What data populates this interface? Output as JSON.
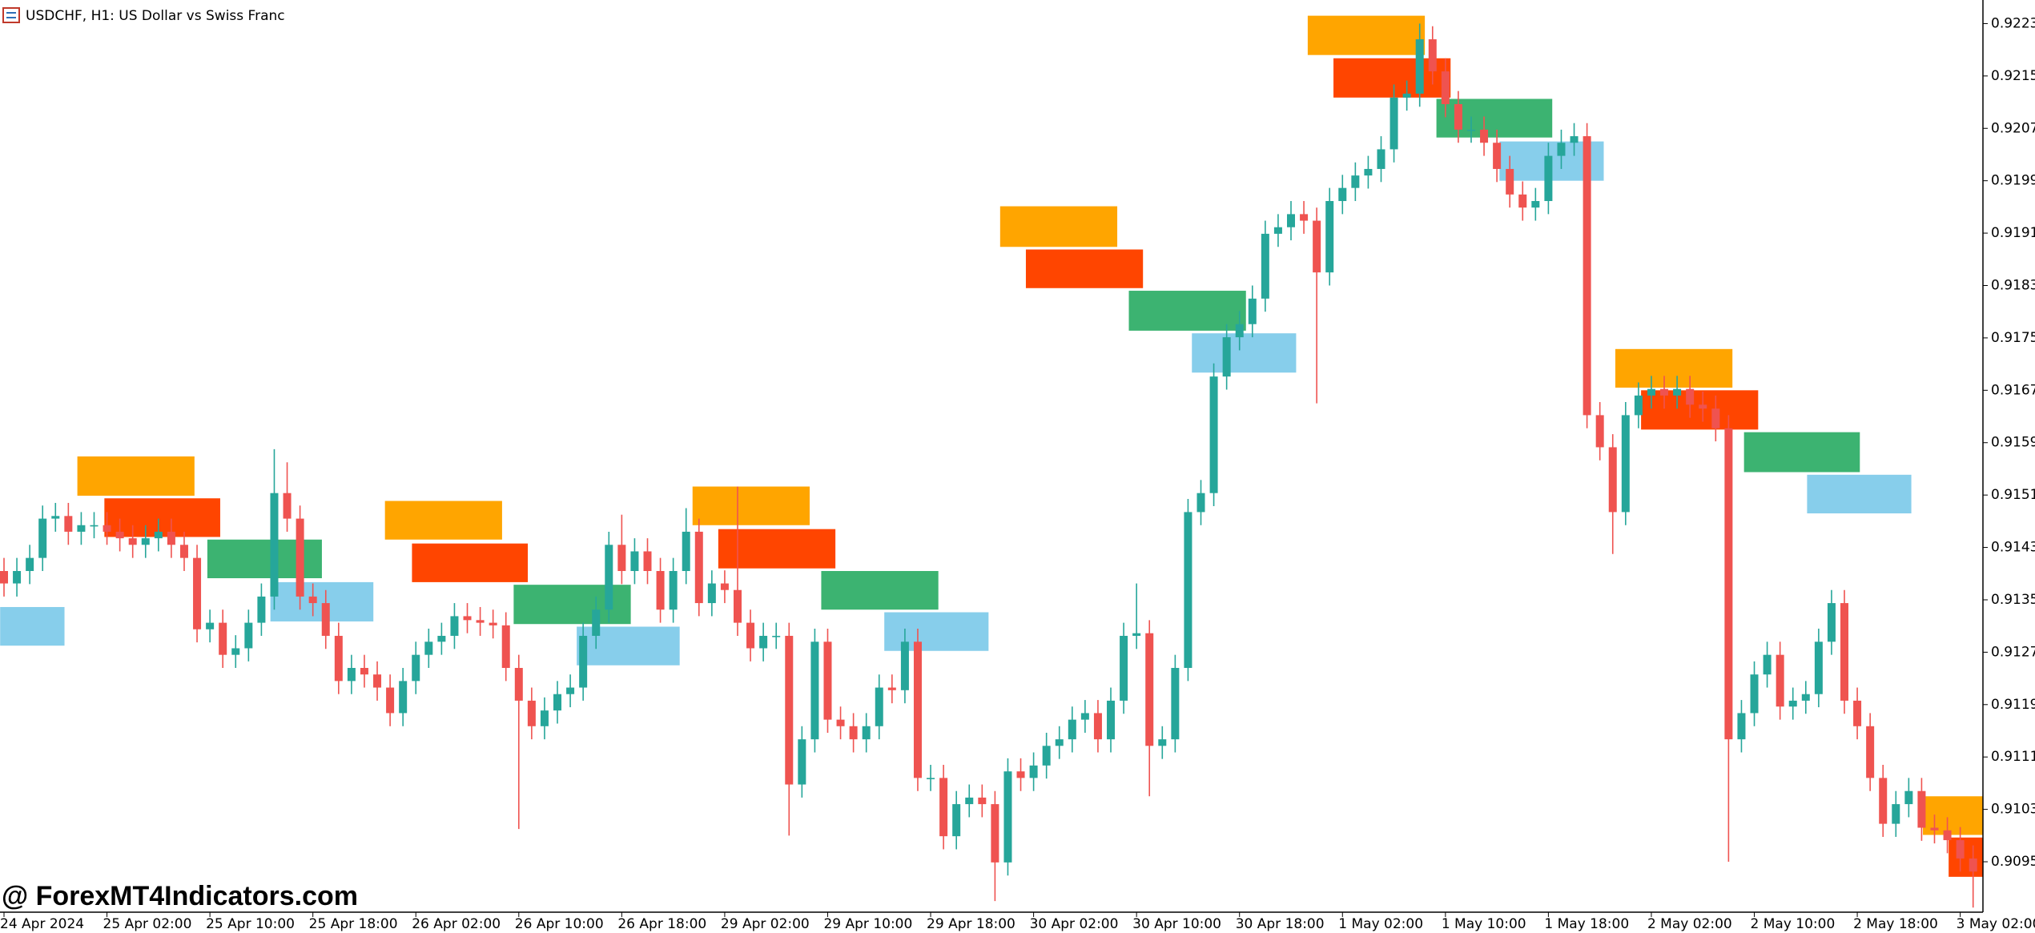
{
  "chart_data": {
    "type": "candlestick",
    "title": "USDCHF, H1:  US Dollar vs Swiss Franc",
    "watermark": "@ ForexMT4Indicators.com",
    "up_color": "#26a69a",
    "down_color": "#ef5350",
    "ylim": [
      0.90873,
      0.92266
    ],
    "yticks": [
      {
        "value": 0.9223,
        "label": "0.92230"
      },
      {
        "value": 0.9215,
        "label": "0.92150"
      },
      {
        "value": 0.9207,
        "label": "0.92070"
      },
      {
        "value": 0.9199,
        "label": "0.91990"
      },
      {
        "value": 0.9191,
        "label": "0.91910"
      },
      {
        "value": 0.9183,
        "label": "0.91830"
      },
      {
        "value": 0.9175,
        "label": "0.91750"
      },
      {
        "value": 0.9167,
        "label": "0.91670"
      },
      {
        "value": 0.9159,
        "label": "0.91590"
      },
      {
        "value": 0.9151,
        "label": "0.91510"
      },
      {
        "value": 0.9143,
        "label": "0.91430"
      },
      {
        "value": 0.9135,
        "label": "0.91350"
      },
      {
        "value": 0.9127,
        "label": "0.91270"
      },
      {
        "value": 0.9119,
        "label": "0.91190"
      },
      {
        "value": 0.9111,
        "label": "0.91110"
      },
      {
        "value": 0.9103,
        "label": "0.91030"
      },
      {
        "value": 0.9095,
        "label": "0.90950"
      }
    ],
    "xticks": [
      {
        "value": 0,
        "label": "24 Apr 2024"
      },
      {
        "value": 8,
        "label": "25 Apr 02:00"
      },
      {
        "value": 16,
        "label": "25 Apr 10:00"
      },
      {
        "value": 24,
        "label": "25 Apr 18:00"
      },
      {
        "value": 32,
        "label": "26 Apr 02:00"
      },
      {
        "value": 40,
        "label": "26 Apr 10:00"
      },
      {
        "value": 48,
        "label": "26 Apr 18:00"
      },
      {
        "value": 56,
        "label": "29 Apr 02:00"
      },
      {
        "value": 64,
        "label": "29 Apr 10:00"
      },
      {
        "value": 72,
        "label": "29 Apr 18:00"
      },
      {
        "value": 80,
        "label": "30 Apr 02:00"
      },
      {
        "value": 88,
        "label": "30 Apr 10:00"
      },
      {
        "value": 96,
        "label": "30 Apr 18:00"
      },
      {
        "value": 104,
        "label": "1 May 02:00"
      },
      {
        "value": 112,
        "label": "1 May 10:00"
      },
      {
        "value": 120,
        "label": "1 May 18:00"
      },
      {
        "value": 128,
        "label": "2 May 02:00"
      },
      {
        "value": 136,
        "label": "2 May 10:00"
      },
      {
        "value": 144,
        "label": "2 May 18:00"
      },
      {
        "value": 152,
        "label": "3 May 02:00"
      }
    ],
    "open": [
      0.91394,
      0.91375,
      0.91394,
      0.91414,
      0.91474,
      0.91478,
      0.91454,
      0.91464,
      0.91464,
      0.91454,
      0.91444,
      0.91434,
      0.91444,
      0.91454,
      0.91434,
      0.91414,
      0.91305,
      0.91315,
      0.91266,
      0.91276,
      0.91315,
      0.91355,
      0.91513,
      0.91474,
      0.91355,
      0.91345,
      0.91295,
      0.91226,
      0.91246,
      0.91236,
      0.91216,
      0.91177,
      0.91226,
      0.91266,
      0.91286,
      0.91295,
      0.91325,
      0.91319,
      0.91315,
      0.91311,
      0.91246,
      0.91196,
      0.91157,
      0.91181,
      0.91206,
      0.91216,
      0.91295,
      0.91335,
      0.91434,
      0.91394,
      0.91424,
      0.91394,
      0.91335,
      0.91394,
      0.91454,
      0.91345,
      0.91375,
      0.91365,
      0.91315,
      0.91276,
      0.91295,
      0.91295,
      0.91068,
      0.91137,
      0.91286,
      0.91167,
      0.91157,
      0.91137,
      0.91157,
      0.91216,
      0.91212,
      0.91286,
      0.91078,
      0.91078,
      0.90989,
      0.91038,
      0.91048,
      0.91038,
      0.90949,
      0.91088,
      0.91078,
      0.91097,
      0.91127,
      0.91137,
      0.91167,
      0.91177,
      0.91137,
      0.91196,
      0.91295,
      0.91299,
      0.91127,
      0.91137,
      0.91246,
      0.91484,
      0.91513,
      0.91691,
      0.91751,
      0.91771,
      0.9181,
      0.91909,
      0.91919,
      0.91939,
      0.91929,
      0.9185,
      0.91959,
      0.91979,
      0.91998,
      0.92008,
      0.92038,
      0.92117,
      0.92123,
      0.92206,
      0.92157,
      0.92107,
      0.92068,
      0.92068,
      0.92048,
      0.92008,
      0.91969,
      0.91949,
      0.91959,
      0.92028,
      0.92048,
      0.92058,
      0.91632,
      0.91583,
      0.91484,
      0.91632,
      0.91662,
      0.91672,
      0.91662,
      0.91672,
      0.91648,
      0.91642,
      0.91612,
      0.91137,
      0.91177,
      0.91236,
      0.91266,
      0.91187,
      0.91196,
      0.91206,
      0.91286,
      0.91345,
      0.91196,
      0.91157,
      0.91078,
      0.91008,
      0.91038,
      0.91058,
      0.91002,
      0.90998,
      0.90983,
      0.90955
    ],
    "close": [
      0.91375,
      0.91394,
      0.91414,
      0.91474,
      0.91478,
      0.91454,
      0.91464,
      0.91464,
      0.91454,
      0.91444,
      0.91434,
      0.91444,
      0.91454,
      0.91434,
      0.91414,
      0.91305,
      0.91315,
      0.91266,
      0.91276,
      0.91315,
      0.91355,
      0.91513,
      0.91474,
      0.91355,
      0.91345,
      0.91295,
      0.91226,
      0.91246,
      0.91236,
      0.91216,
      0.91177,
      0.91226,
      0.91266,
      0.91286,
      0.91295,
      0.91325,
      0.91319,
      0.91315,
      0.91311,
      0.91246,
      0.91196,
      0.91157,
      0.91181,
      0.91206,
      0.91216,
      0.91295,
      0.91335,
      0.91434,
      0.91394,
      0.91424,
      0.91394,
      0.91335,
      0.91394,
      0.91454,
      0.91345,
      0.91375,
      0.91365,
      0.91315,
      0.91276,
      0.91295,
      0.91295,
      0.91068,
      0.91137,
      0.91286,
      0.91167,
      0.91157,
      0.91137,
      0.91157,
      0.91216,
      0.91212,
      0.91286,
      0.91078,
      0.91078,
      0.90989,
      0.91038,
      0.91048,
      0.91038,
      0.90949,
      0.91088,
      0.91078,
      0.91097,
      0.91127,
      0.91137,
      0.91167,
      0.91177,
      0.91137,
      0.91196,
      0.91295,
      0.91299,
      0.91127,
      0.91137,
      0.91246,
      0.91484,
      0.91513,
      0.91691,
      0.91751,
      0.91771,
      0.9181,
      0.91909,
      0.91919,
      0.91939,
      0.91929,
      0.9185,
      0.91959,
      0.91979,
      0.91998,
      0.92008,
      0.92038,
      0.92117,
      0.92123,
      0.92206,
      0.92157,
      0.92107,
      0.92068,
      0.92068,
      0.92048,
      0.92008,
      0.91969,
      0.91949,
      0.91959,
      0.92028,
      0.92048,
      0.92058,
      0.91632,
      0.91583,
      0.91484,
      0.91632,
      0.91662,
      0.91672,
      0.91662,
      0.91672,
      0.91648,
      0.91642,
      0.91612,
      0.91137,
      0.91177,
      0.91236,
      0.91266,
      0.91187,
      0.91196,
      0.91206,
      0.91286,
      0.91345,
      0.91196,
      0.91157,
      0.91078,
      0.91008,
      0.91038,
      0.91058,
      0.91002,
      0.90998,
      0.90983,
      0.90955,
      0.90935
    ],
    "high": [
      0.91414,
      0.91414,
      0.91434,
      0.91494,
      0.91498,
      0.91498,
      0.91484,
      0.91484,
      0.91484,
      0.91474,
      0.91464,
      0.91464,
      0.91474,
      0.91474,
      0.91454,
      0.91434,
      0.91335,
      0.91335,
      0.91296,
      0.91335,
      0.91375,
      0.9158,
      0.9156,
      0.91494,
      0.91375,
      0.91365,
      0.91315,
      0.91266,
      0.91266,
      0.91256,
      0.91236,
      0.91246,
      0.91286,
      0.91306,
      0.91315,
      0.91345,
      0.91345,
      0.91339,
      0.91335,
      0.91331,
      0.91266,
      0.91216,
      0.91201,
      0.91226,
      0.91236,
      0.91315,
      0.91355,
      0.91454,
      0.9148,
      0.91444,
      0.91444,
      0.91414,
      0.91414,
      0.9149,
      0.91474,
      0.91395,
      0.91395,
      0.91523,
      0.91335,
      0.91315,
      0.91315,
      0.91315,
      0.91157,
      0.91306,
      0.91306,
      0.91187,
      0.91177,
      0.91177,
      0.91236,
      0.91236,
      0.91306,
      0.91306,
      0.91098,
      0.91098,
      0.91058,
      0.91068,
      0.91068,
      0.91058,
      0.91108,
      0.91108,
      0.91117,
      0.91147,
      0.91157,
      0.91187,
      0.91197,
      0.91197,
      0.91216,
      0.91315,
      0.91375,
      0.91319,
      0.91157,
      0.91266,
      0.91504,
      0.91533,
      0.91711,
      0.91771,
      0.91791,
      0.9183,
      0.91929,
      0.91939,
      0.91959,
      0.91959,
      0.91949,
      0.91979,
      0.91999,
      0.92018,
      0.92028,
      0.92058,
      0.92137,
      0.92143,
      0.9223,
      0.92226,
      0.92177,
      0.92127,
      0.92088,
      0.92088,
      0.92068,
      0.92028,
      0.91989,
      0.91979,
      0.92048,
      0.92068,
      0.92078,
      0.92078,
      0.91652,
      0.91603,
      0.91652,
      0.91682,
      0.91692,
      0.91692,
      0.91692,
      0.91692,
      0.91668,
      0.91662,
      0.91632,
      0.91197,
      0.91256,
      0.91286,
      0.91286,
      0.91216,
      0.91226,
      0.91306,
      0.91365,
      0.91365,
      0.91216,
      0.91177,
      0.91098,
      0.91058,
      0.91078,
      0.91078,
      0.91022,
      0.91018,
      0.91003,
      0.90975
    ],
    "low": [
      0.91355,
      0.91355,
      0.91374,
      0.91394,
      0.91454,
      0.91434,
      0.91434,
      0.91444,
      0.91434,
      0.91424,
      0.91414,
      0.91414,
      0.91424,
      0.91414,
      0.91394,
      0.91285,
      0.91285,
      0.91246,
      0.91246,
      0.91256,
      0.91295,
      0.91335,
      0.91454,
      0.91335,
      0.91325,
      0.91275,
      0.91206,
      0.91206,
      0.91216,
      0.91196,
      0.91157,
      0.91157,
      0.91206,
      0.91246,
      0.91266,
      0.91275,
      0.91299,
      0.91295,
      0.91291,
      0.91226,
      0.91,
      0.91137,
      0.91137,
      0.91161,
      0.91186,
      0.91196,
      0.91275,
      0.91315,
      0.91374,
      0.91374,
      0.91374,
      0.91315,
      0.91315,
      0.91374,
      0.91325,
      0.91325,
      0.91345,
      0.91295,
      0.91256,
      0.91256,
      0.91275,
      0.9099,
      0.91048,
      0.91117,
      0.91147,
      0.91137,
      0.91117,
      0.91117,
      0.91137,
      0.91192,
      0.91192,
      0.91058,
      0.91058,
      0.90969,
      0.90969,
      0.91018,
      0.91018,
      0.9089,
      0.90929,
      0.91058,
      0.91058,
      0.91077,
      0.91107,
      0.91117,
      0.91147,
      0.91117,
      0.91117,
      0.91176,
      0.91275,
      0.9105,
      0.91107,
      0.91117,
      0.91226,
      0.91464,
      0.91493,
      0.91671,
      0.91731,
      0.91751,
      0.9179,
      0.91889,
      0.91899,
      0.91909,
      0.9165,
      0.9183,
      0.91939,
      0.91959,
      0.91978,
      0.91988,
      0.92018,
      0.92097,
      0.92103,
      0.92137,
      0.92087,
      0.92048,
      0.92048,
      0.92028,
      0.91988,
      0.91949,
      0.91929,
      0.91929,
      0.91939,
      0.92008,
      0.92028,
      0.91612,
      0.91563,
      0.9142,
      0.91464,
      0.91612,
      0.91642,
      0.91642,
      0.91642,
      0.91628,
      0.91622,
      0.91592,
      0.9095,
      0.91117,
      0.91157,
      0.91216,
      0.91167,
      0.91167,
      0.91176,
      0.91186,
      0.91266,
      0.91176,
      0.91137,
      0.91058,
      0.90988,
      0.90988,
      0.91018,
      0.90982,
      0.90978,
      0.90963,
      0.90935,
      0.9088
    ],
    "zones": [
      {
        "color": "#87ceeb",
        "top": 0.91339,
        "bottom": 0.9128,
        "start": -0.3,
        "end": 4.7
      },
      {
        "color": "#ffa500",
        "top": 0.91569,
        "bottom": 0.91509,
        "start": 5.7,
        "end": 14.8
      },
      {
        "color": "#ff4500",
        "top": 0.91505,
        "bottom": 0.91446,
        "start": 7.8,
        "end": 16.8
      },
      {
        "color": "#3cb371",
        "top": 0.91442,
        "bottom": 0.91383,
        "start": 15.8,
        "end": 24.7
      },
      {
        "color": "#87ceeb",
        "top": 0.91377,
        "bottom": 0.91317,
        "start": 20.7,
        "end": 28.7
      },
      {
        "color": "#ffa500",
        "top": 0.91501,
        "bottom": 0.91442,
        "start": 29.6,
        "end": 38.7
      },
      {
        "color": "#ff4500",
        "top": 0.91436,
        "bottom": 0.91377,
        "start": 31.7,
        "end": 40.7
      },
      {
        "color": "#3cb371",
        "top": 0.91373,
        "bottom": 0.91313,
        "start": 39.6,
        "end": 48.7
      },
      {
        "color": "#87ceeb",
        "top": 0.91309,
        "bottom": 0.9125,
        "start": 44.5,
        "end": 52.5
      },
      {
        "color": "#ffa500",
        "top": 0.91523,
        "bottom": 0.91464,
        "start": 53.5,
        "end": 62.6
      },
      {
        "color": "#ff4500",
        "top": 0.91458,
        "bottom": 0.91398,
        "start": 55.5,
        "end": 64.6
      },
      {
        "color": "#3cb371",
        "top": 0.91394,
        "bottom": 0.91335,
        "start": 63.5,
        "end": 72.6
      },
      {
        "color": "#87ceeb",
        "top": 0.91331,
        "bottom": 0.91272,
        "start": 68.4,
        "end": 76.5
      },
      {
        "color": "#ffa500",
        "top": 0.91951,
        "bottom": 0.91889,
        "start": 77.4,
        "end": 86.5
      },
      {
        "color": "#ff4500",
        "top": 0.91885,
        "bottom": 0.91826,
        "start": 79.4,
        "end": 88.5
      },
      {
        "color": "#3cb371",
        "top": 0.91822,
        "bottom": 0.91761,
        "start": 87.4,
        "end": 96.5
      },
      {
        "color": "#87ceeb",
        "top": 0.91757,
        "bottom": 0.91697,
        "start": 92.3,
        "end": 100.4
      },
      {
        "color": "#ffa500",
        "top": 0.92242,
        "bottom": 0.92182,
        "start": 101.3,
        "end": 110.4
      },
      {
        "color": "#ff4500",
        "top": 0.92177,
        "bottom": 0.92117,
        "start": 103.3,
        "end": 112.4
      },
      {
        "color": "#3cb371",
        "top": 0.92115,
        "bottom": 0.92056,
        "start": 111.3,
        "end": 120.3
      },
      {
        "color": "#87ceeb",
        "top": 0.9205,
        "bottom": 0.9199,
        "start": 116.2,
        "end": 124.3
      },
      {
        "color": "#ffa500",
        "top": 0.91733,
        "bottom": 0.91674,
        "start": 125.2,
        "end": 134.3
      },
      {
        "color": "#ff4500",
        "top": 0.9167,
        "bottom": 0.9161,
        "start": 127.2,
        "end": 136.3
      },
      {
        "color": "#3cb371",
        "top": 0.91606,
        "bottom": 0.91545,
        "start": 135.2,
        "end": 144.2
      },
      {
        "color": "#87ceeb",
        "top": 0.91541,
        "bottom": 0.91482,
        "start": 140.1,
        "end": 148.2
      },
      {
        "color": "#ffa500",
        "top": 0.9105,
        "bottom": 0.90991,
        "start": 149.1,
        "end": 154
      },
      {
        "color": "#ff4500",
        "top": 0.90987,
        "bottom": 0.90927,
        "start": 151.1,
        "end": 154
      }
    ]
  }
}
